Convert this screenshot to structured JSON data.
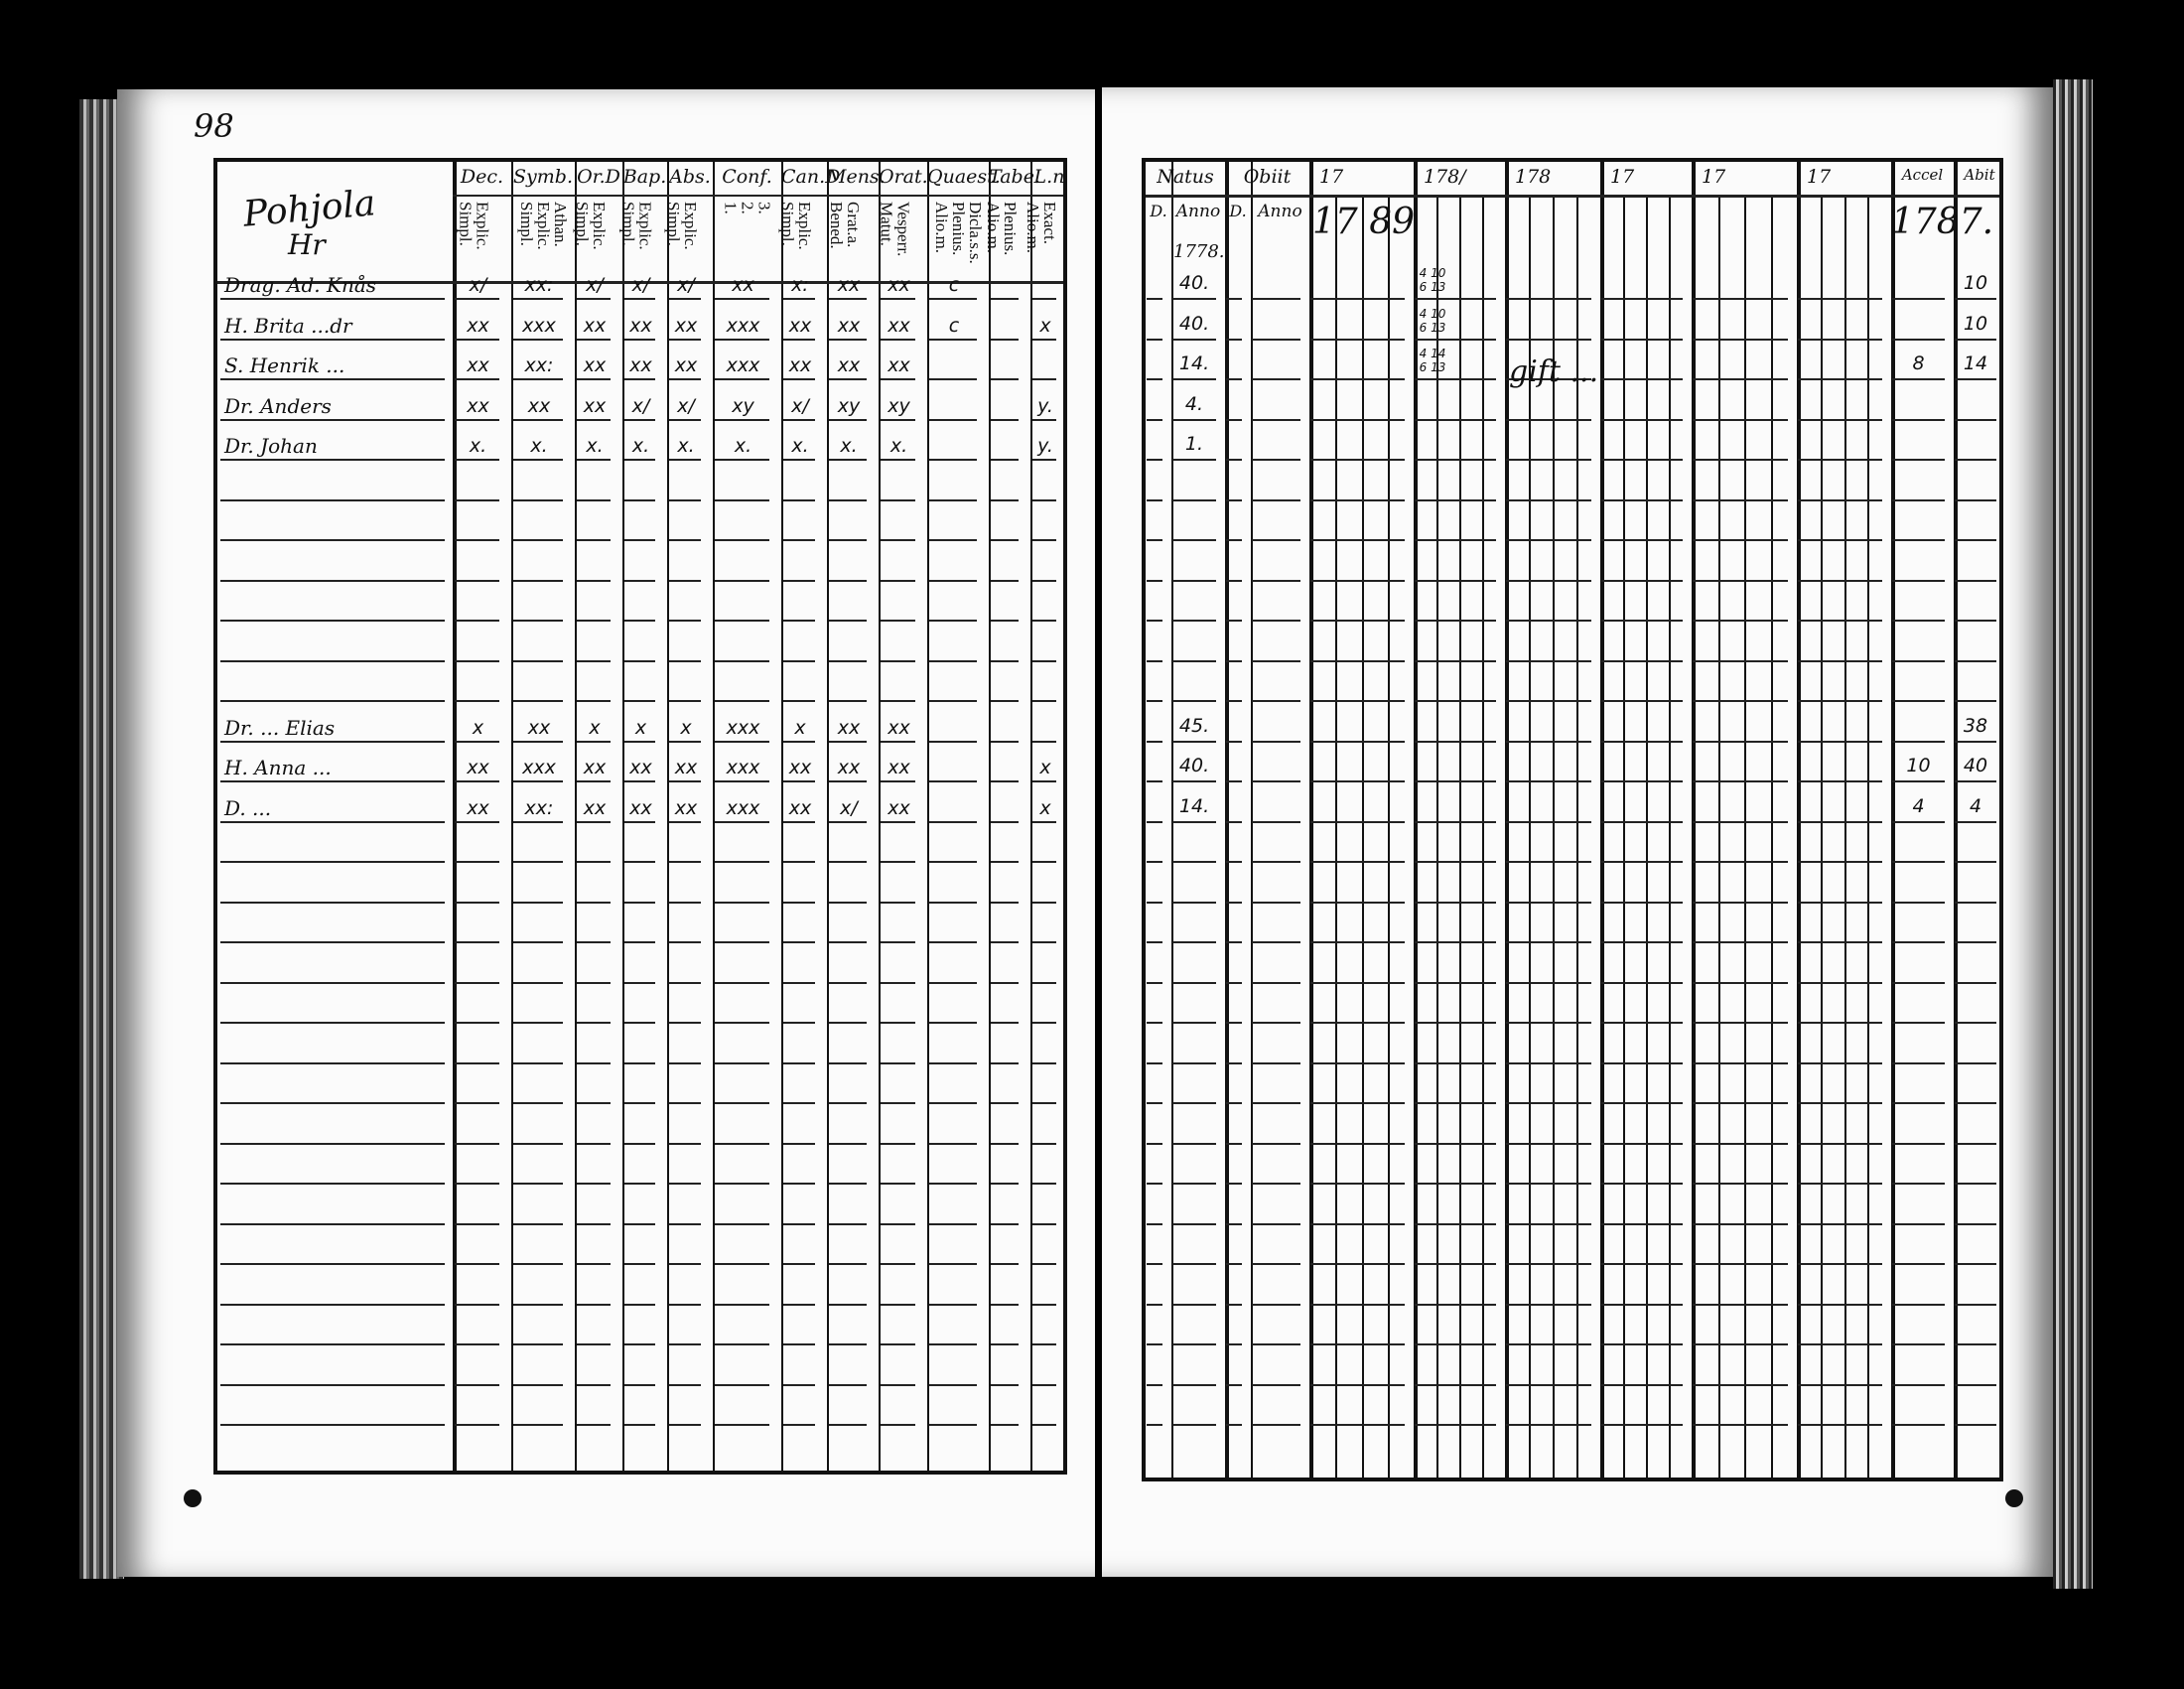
{
  "left_page": {
    "page_number": "98",
    "parish_title": "Pohjola",
    "parish_sub": "Hr",
    "headers": [
      {
        "title": "Dec.",
        "sub": "Explic.\nSimpl."
      },
      {
        "title": "Symb.",
        "sub": "Athan.\nExplic.\nSimpl."
      },
      {
        "title": "Or.D",
        "sub": "Explic.\nSimpl."
      },
      {
        "title": "Bap.",
        "sub": "Explic.\nSimpl."
      },
      {
        "title": "Abs.",
        "sub": "Explic.\nSimpl."
      },
      {
        "title": "Conf.",
        "sub": "3.\n2.\n1."
      },
      {
        "title": "Can.D",
        "sub": "Explic.\nSimpl."
      },
      {
        "title": "Mens.",
        "sub": "Grat.a.\nBened."
      },
      {
        "title": "Orat.",
        "sub": "Vesperr.\nMatut."
      },
      {
        "title": "Quaest.",
        "sub": "Dicla.s.s.\nPlenius.\nAlio.m."
      },
      {
        "title": "Tabe.",
        "sub": "Plenius.\nAlio.m."
      },
      {
        "title": "L.n",
        "sub": "Exact.\nAlio.m."
      }
    ],
    "rows": [
      {
        "name": "Drag. Ad. Knås",
        "marks": [
          "x/",
          "xx:",
          "x/",
          "x/",
          "x/",
          "xx",
          "x:",
          "xx",
          "xx",
          "c",
          "",
          ""
        ]
      },
      {
        "name": "H. Brita ...dr",
        "marks": [
          "xx",
          "xxx",
          "xx",
          "xx",
          "xx",
          "xxx",
          "xx",
          "xx",
          "xx",
          "c",
          "",
          "x"
        ]
      },
      {
        "name": "S. Henrik ...",
        "marks": [
          "xx",
          "xx:",
          "xx",
          "xx",
          "xx",
          "xxx",
          "xx",
          "xx",
          "xx",
          "",
          "",
          ""
        ]
      },
      {
        "name": "Dr. Anders",
        "marks": [
          "xx",
          "xx",
          "xx",
          "x/",
          "x/",
          "xy",
          "x/",
          "xy",
          "xy",
          "",
          "",
          "y."
        ]
      },
      {
        "name": "Dr. Johan",
        "marks": [
          "x.",
          "x.",
          "x.",
          "x.",
          "x.",
          "x.",
          "x.",
          "x.",
          "x.",
          "",
          "",
          "y."
        ]
      },
      {
        "name": "",
        "marks": []
      },
      {
        "name": "",
        "marks": []
      },
      {
        "name": "",
        "marks": []
      },
      {
        "name": "",
        "marks": []
      },
      {
        "name": "",
        "marks": []
      },
      {
        "name": "",
        "marks": []
      },
      {
        "name": "Dr. ...  Elias",
        "marks": [
          "x",
          "xx",
          "x",
          "x",
          "x",
          "xxx",
          "x",
          "xx",
          "xx",
          "",
          "",
          ""
        ]
      },
      {
        "name": "H. Anna ...",
        "marks": [
          "xx",
          "xxx",
          "xx",
          "xx",
          "xx",
          "xxx",
          "xx",
          "xx",
          "xx",
          "",
          "",
          "x"
        ]
      },
      {
        "name": "D. ... ",
        "marks": [
          "xx",
          "xx:",
          "xx",
          "xx",
          "xx",
          "xxx",
          "xx",
          "x/",
          "xx",
          "",
          "",
          "x"
        ]
      }
    ]
  },
  "right_page": {
    "headers": {
      "natus": "Natus",
      "natus_d": "D.",
      "natus_anno": "Anno",
      "obiit": "Obiit",
      "obiit_d": "D.",
      "obiit_anno": "Anno",
      "years": [
        "17",
        "178/",
        "178",
        "17",
        "17",
        "17"
      ],
      "accel": "Accel",
      "abit": "Abit"
    },
    "natus_year_note": "1778.",
    "year_note": "17 89",
    "accel_year": "1787.",
    "remark": "gift ... ",
    "rows": [
      {
        "anno": "40.",
        "col1781": "4 10\n6 13",
        "accel": "",
        "abit": "10"
      },
      {
        "anno": "40.",
        "col1781": "4 10\n6 13",
        "accel": "",
        "abit": "10"
      },
      {
        "anno": "14.",
        "col1781": "4 14\n6 13",
        "accel": "8",
        "abit": "14"
      },
      {
        "anno": "4.",
        "col1781": "",
        "accel": "",
        "abit": ""
      },
      {
        "anno": "1.",
        "col1781": "",
        "accel": "",
        "abit": ""
      },
      {
        "anno": "",
        "col1781": "",
        "accel": "",
        "abit": ""
      },
      {
        "anno": "",
        "col1781": "",
        "accel": "",
        "abit": ""
      },
      {
        "anno": "",
        "col1781": "",
        "accel": "",
        "abit": ""
      },
      {
        "anno": "",
        "col1781": "",
        "accel": "",
        "abit": ""
      },
      {
        "anno": "",
        "col1781": "",
        "accel": "",
        "abit": ""
      },
      {
        "anno": "",
        "col1781": "",
        "accel": "",
        "abit": ""
      },
      {
        "anno": "45.",
        "col1781": "",
        "accel": "",
        "abit": "38"
      },
      {
        "anno": "40.",
        "col1781": "",
        "accel": "10",
        "abit": "40"
      },
      {
        "anno": "14.",
        "col1781": "",
        "accel": "4",
        "abit": "4"
      }
    ]
  }
}
